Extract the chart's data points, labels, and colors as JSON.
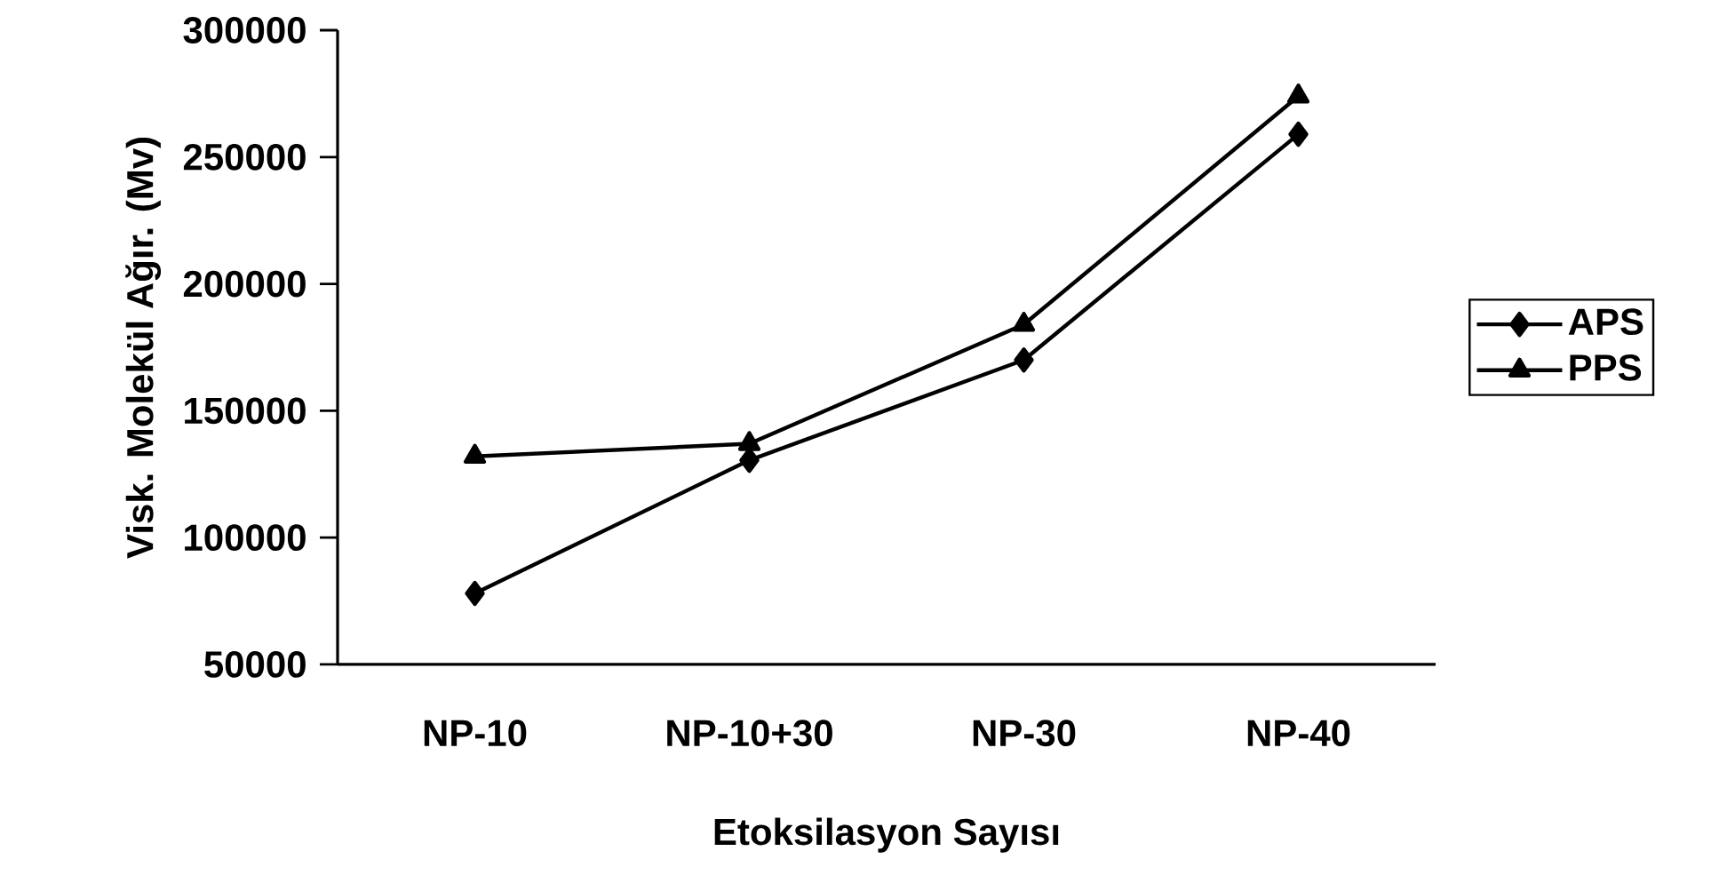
{
  "chart_data": {
    "type": "line",
    "xlabel": "Etoksilasyon Sayısı",
    "ylabel": "Visk. Molekül Ağır. (Mv)",
    "categories": [
      "NP-10",
      "NP-10+30",
      "NP-30",
      "NP-40"
    ],
    "series": [
      {
        "name": "APS",
        "color": "#000000",
        "marker": "diamond",
        "values": [
          78000,
          130500,
          170000,
          259000
        ]
      },
      {
        "name": "PPS",
        "color": "#000000",
        "marker": "triangle",
        "values": [
          132000,
          137000,
          184000,
          274000
        ]
      }
    ],
    "ylim": [
      50000,
      300000
    ],
    "yticks": [
      50000,
      100000,
      150000,
      200000,
      250000,
      300000
    ],
    "legend": "right",
    "grid": false,
    "line_style": "solid"
  }
}
